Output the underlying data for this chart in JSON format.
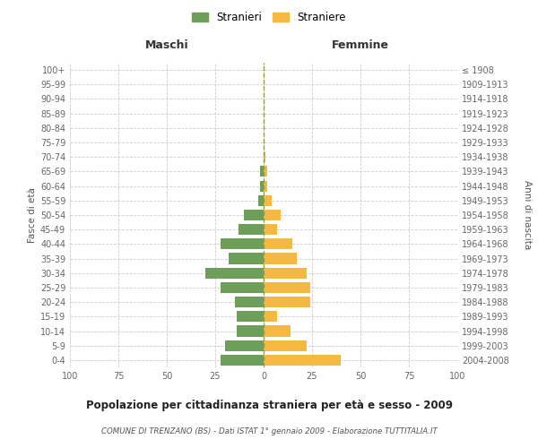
{
  "age_groups": [
    "0-4",
    "5-9",
    "10-14",
    "15-19",
    "20-24",
    "25-29",
    "30-34",
    "35-39",
    "40-44",
    "45-49",
    "50-54",
    "55-59",
    "60-64",
    "65-69",
    "70-74",
    "75-79",
    "80-84",
    "85-89",
    "90-94",
    "95-99",
    "100+"
  ],
  "birth_years": [
    "2004-2008",
    "1999-2003",
    "1994-1998",
    "1989-1993",
    "1984-1988",
    "1979-1983",
    "1974-1978",
    "1969-1973",
    "1964-1968",
    "1959-1963",
    "1954-1958",
    "1949-1953",
    "1944-1948",
    "1939-1943",
    "1934-1938",
    "1929-1933",
    "1924-1928",
    "1919-1923",
    "1914-1918",
    "1909-1913",
    "≤ 1908"
  ],
  "maschi": [
    22,
    20,
    14,
    14,
    15,
    22,
    30,
    18,
    22,
    13,
    10,
    3,
    2,
    2,
    0,
    0,
    0,
    0,
    0,
    0,
    0
  ],
  "femmine": [
    40,
    22,
    14,
    7,
    24,
    24,
    22,
    17,
    15,
    7,
    9,
    4,
    2,
    2,
    1,
    0,
    0,
    0,
    0,
    0,
    0
  ],
  "maschi_color": "#6d9f5a",
  "femmine_color": "#f5b942",
  "title_main": "Popolazione per cittadinanza straniera per età e sesso - 2009",
  "subtitle": "COMUNE DI TRENZANO (BS) - Dati ISTAT 1° gennaio 2009 - Elaborazione TUTTITALIA.IT",
  "xlabel_left": "Maschi",
  "xlabel_right": "Femmine",
  "ylabel_left": "Fasce di età",
  "ylabel_right": "Anni di nascita",
  "legend_maschi": "Stranieri",
  "legend_femmine": "Straniere",
  "xlim": 100,
  "background_color": "#ffffff",
  "grid_color": "#cccccc"
}
